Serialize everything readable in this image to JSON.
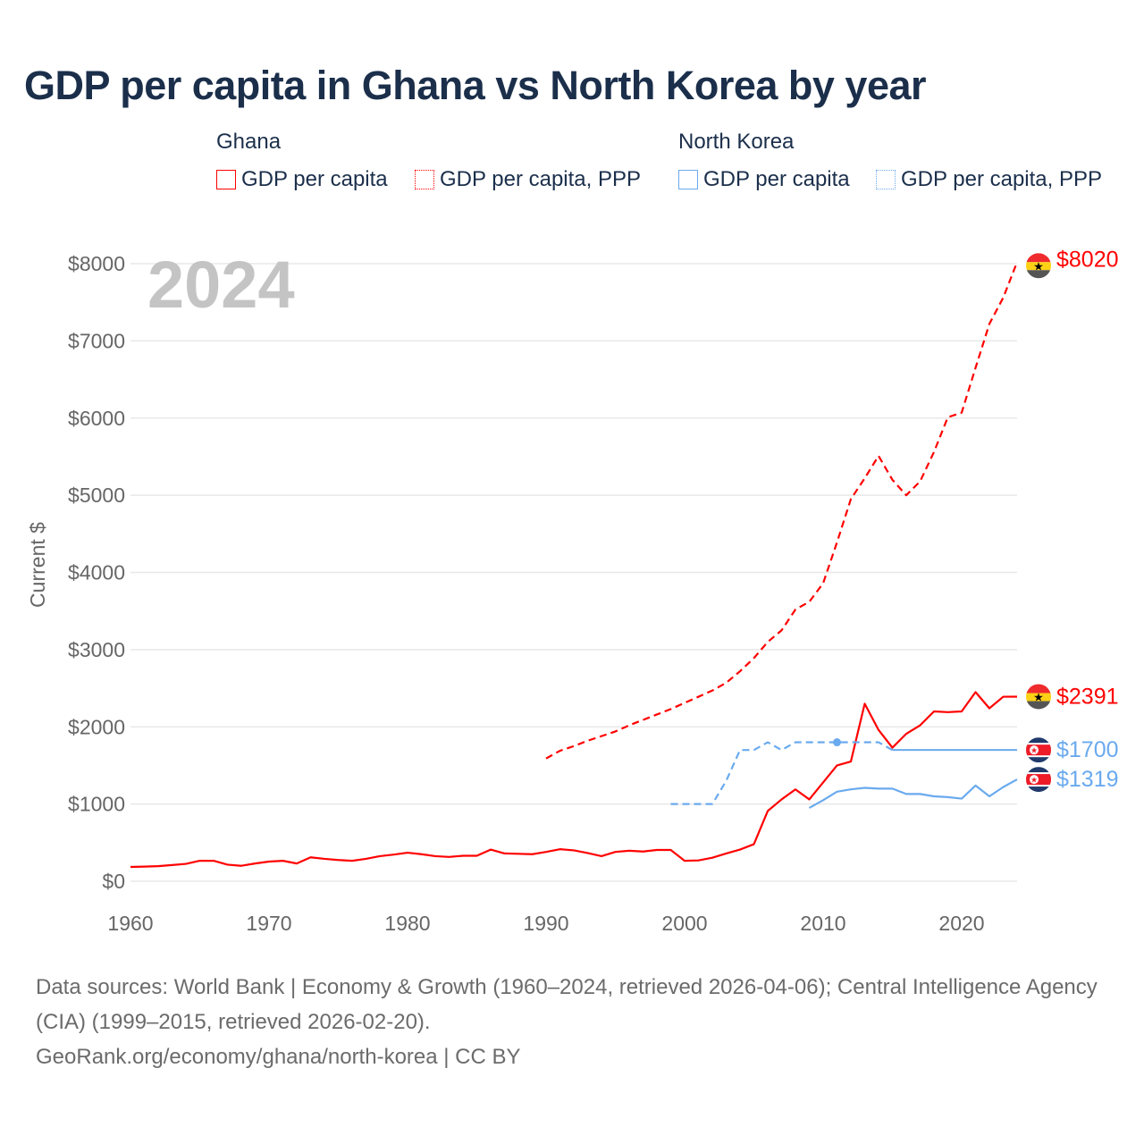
{
  "title": "GDP per capita in Ghana vs North Korea by year",
  "legend": {
    "groups": [
      {
        "name": "Ghana",
        "items": [
          "GDP per capita",
          "GDP per capita, PPP"
        ]
      },
      {
        "name": "North Korea",
        "items": [
          "GDP per capita",
          "GDP per capita, PPP"
        ]
      }
    ]
  },
  "year_label": "2024",
  "colors": {
    "ghana": "#ff0000",
    "north_korea": "#6aaaee",
    "grid": "#e8e8e8",
    "axis_text": "#666666"
  },
  "chart_data": {
    "type": "line",
    "title": "GDP per capita in Ghana vs North Korea by year",
    "xlabel": "",
    "ylabel": "Current $",
    "xlim": [
      1960,
      2024
    ],
    "ylim": [
      0,
      8000
    ],
    "x_ticks": [
      "1960",
      "1970",
      "1980",
      "1990",
      "2000",
      "2010",
      "2020"
    ],
    "y_ticks": [
      "$0",
      "$1000",
      "$2000",
      "$3000",
      "$4000",
      "$5000",
      "$6000",
      "$7000",
      "$8000"
    ],
    "grid": true,
    "legend_position": "top",
    "series": [
      {
        "name": "Ghana GDP per capita",
        "country": "ghana",
        "style": "solid",
        "end_label": "$2391",
        "x_start": 1960,
        "values": [
          185,
          190,
          195,
          210,
          225,
          265,
          265,
          215,
          200,
          230,
          255,
          265,
          230,
          310,
          290,
          275,
          265,
          290,
          325,
          345,
          370,
          350,
          325,
          315,
          330,
          330,
          410,
          360,
          355,
          350,
          380,
          415,
          400,
          365,
          325,
          380,
          395,
          385,
          405,
          405,
          265,
          270,
          305,
          360,
          410,
          480,
          910,
          1060,
          1190,
          1060,
          1280,
          1500,
          1550,
          2300,
          1960,
          1730,
          1910,
          2020,
          2200,
          2190,
          2200,
          2450,
          2240,
          2390,
          2391
        ]
      },
      {
        "name": "Ghana GDP per capita, PPP",
        "country": "ghana",
        "style": "dashed",
        "end_label": "$8020",
        "x_start": 1990,
        "values": [
          1590,
          1690,
          1750,
          1820,
          1880,
          1940,
          2020,
          2090,
          2160,
          2230,
          2310,
          2390,
          2470,
          2570,
          2720,
          2890,
          3100,
          3250,
          3520,
          3620,
          3860,
          4390,
          4950,
          5220,
          5510,
          5200,
          5000,
          5180,
          5560,
          6010,
          6070,
          6650,
          7220,
          7560,
          8020
        ]
      },
      {
        "name": "North Korea GDP per capita",
        "country": "north_korea",
        "style": "solid",
        "end_label": "$1319",
        "x_start": 2009,
        "values": [
          950,
          1050,
          1160,
          1190,
          1210,
          1200,
          1200,
          1130,
          1130,
          1100,
          1090,
          1070,
          1240,
          1100,
          1220,
          1319
        ]
      },
      {
        "name": "North Korea GDP per capita, PPP",
        "country": "north_korea",
        "style": "dashed",
        "end_label": "$1700",
        "x_start": 1999,
        "values": [
          1000,
          1000,
          1000,
          1000,
          1300,
          1700,
          1700,
          1800,
          1700,
          1800,
          1800,
          1800,
          1800,
          1800,
          1800,
          1800,
          1700
        ],
        "carried_forward_to": 2024,
        "highlight_year": 2011
      }
    ]
  },
  "footer": {
    "sources": "Data sources: World Bank | Economy & Growth (1960–2024, retrieved 2026-04-06); Central Intelligence Agency (CIA) (1999–2015, retrieved 2026-02-20).",
    "link": "GeoRank.org/economy/ghana/north-korea | CC BY"
  }
}
